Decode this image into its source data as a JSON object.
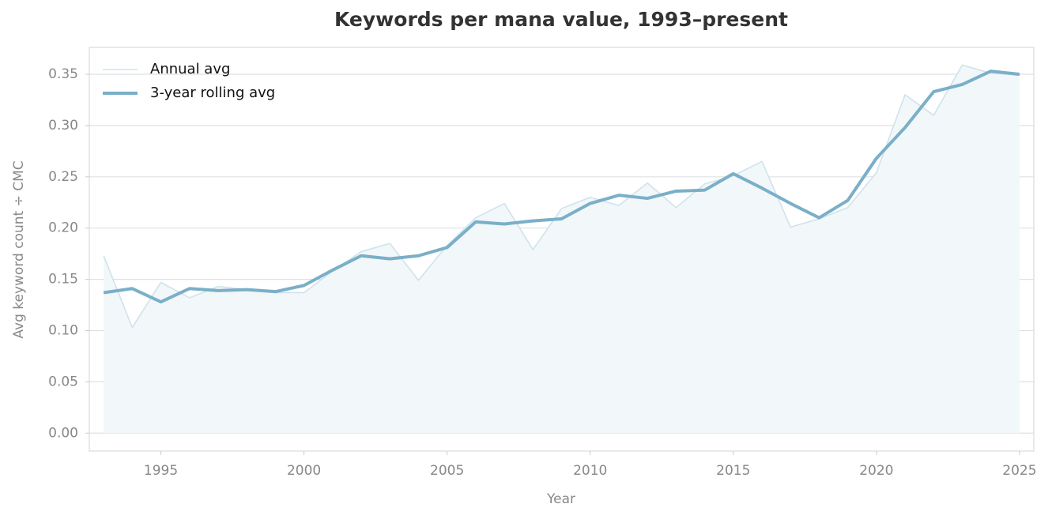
{
  "chart_data": {
    "type": "line",
    "title": "Keywords per mana value, 1993–present",
    "x_label": "Year",
    "y_label": "Avg keyword count ÷ CMC",
    "x": [
      1993,
      1994,
      1995,
      1996,
      1997,
      1998,
      1999,
      2000,
      2001,
      2002,
      2003,
      2004,
      2005,
      2006,
      2007,
      2008,
      2009,
      2010,
      2011,
      2012,
      2013,
      2014,
      2015,
      2016,
      2017,
      2018,
      2019,
      2020,
      2021,
      2022,
      2023,
      2024,
      2025
    ],
    "series": [
      {
        "name": "Annual avg",
        "color": "#cfe3ec",
        "area": true,
        "area_color": "#f2f7fa",
        "values": [
          0.173,
          0.103,
          0.147,
          0.132,
          0.143,
          0.14,
          0.137,
          0.137,
          0.158,
          0.177,
          0.185,
          0.149,
          0.183,
          0.21,
          0.224,
          0.179,
          0.219,
          0.23,
          0.222,
          0.244,
          0.22,
          0.243,
          0.251,
          0.265,
          0.201,
          0.209,
          0.22,
          0.254,
          0.33,
          0.31,
          0.359,
          0.351,
          0.349
        ]
      },
      {
        "name": "3-year rolling avg",
        "color": "#7aafc8",
        "values": [
          0.137,
          0.141,
          0.128,
          0.141,
          0.139,
          0.14,
          0.138,
          0.144,
          0.159,
          0.173,
          0.17,
          0.173,
          0.181,
          0.206,
          0.204,
          0.207,
          0.209,
          0.224,
          0.232,
          0.229,
          0.236,
          0.237,
          0.253,
          0.239,
          0.224,
          0.21,
          0.227,
          0.268,
          0.298,
          0.333,
          0.34,
          0.353,
          0.35
        ]
      }
    ],
    "xlim": [
      1992.5,
      2025.5
    ],
    "xticks": [
      1995,
      2000,
      2005,
      2010,
      2015,
      2020,
      2025
    ],
    "ylim": [
      -0.0175,
      0.3762
    ],
    "yticks": [
      {
        "value": 0,
        "label": "0.00"
      },
      0.05,
      {
        "value": 0.1,
        "label": "0.10"
      },
      0.15,
      {
        "value": 0.2,
        "label": "0.20"
      },
      0.25,
      {
        "value": 0.3,
        "label": "0.30"
      },
      0.35
    ],
    "grid": true,
    "legend": "upper left"
  }
}
